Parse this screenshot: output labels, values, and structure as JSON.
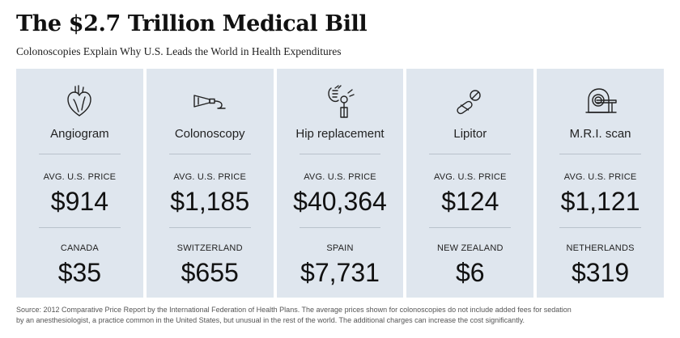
{
  "header": {
    "title": "The $2.7 Trillion Medical Bill",
    "subtitle": "Colonoscopies Explain Why U.S. Leads the World in Health Expenditures"
  },
  "procedures": [
    {
      "name": "Angiogram",
      "icon": "heart-icon",
      "us_label": "AVG. U.S. PRICE",
      "us_price": "$914",
      "country": "CANADA",
      "country_price": "$35"
    },
    {
      "name": "Colonoscopy",
      "icon": "colonoscope-icon",
      "us_label": "AVG. U.S. PRICE",
      "us_price": "$1,185",
      "country": "SWITZERLAND",
      "country_price": "$655"
    },
    {
      "name": "Hip replacement",
      "icon": "hip-joint-icon",
      "us_label": "AVG. U.S. PRICE",
      "us_price": "$40,364",
      "country": "SPAIN",
      "country_price": "$7,731"
    },
    {
      "name": "Lipitor",
      "icon": "pills-icon",
      "us_label": "AVG. U.S. PRICE",
      "us_price": "$124",
      "country": "NEW ZEALAND",
      "country_price": "$6"
    },
    {
      "name": "M.R.I. scan",
      "icon": "mri-scanner-icon",
      "us_label": "AVG. U.S. PRICE",
      "us_price": "$1,121",
      "country": "NETHERLANDS",
      "country_price": "$319"
    }
  ],
  "footer": {
    "source_line1": "Source: 2012 Comparative Price Report by the International Federation of Health Plans. The average prices shown for colonoscopies do not include added fees for sedation",
    "source_line2": "by an anesthesiologist, a practice common in the United States, but unusual in the rest of the world. The additional charges can increase the cost significantly."
  },
  "colors": {
    "panel_background": "#dfe6ee",
    "divider": "#b9c2cc",
    "text": "#111111"
  }
}
